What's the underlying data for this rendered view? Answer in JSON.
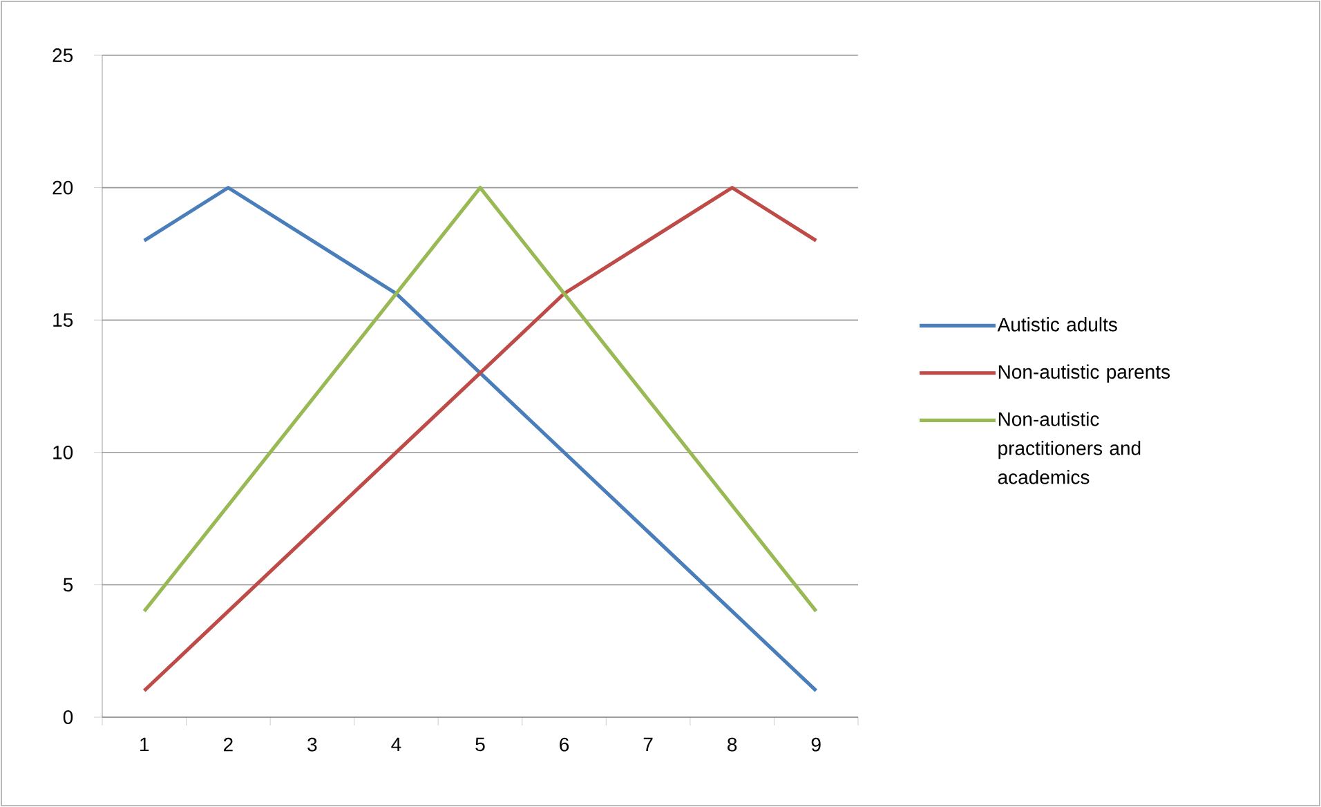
{
  "chart_data": {
    "type": "line",
    "categories": [
      "1",
      "2",
      "3",
      "4",
      "5",
      "6",
      "7",
      "8",
      "9"
    ],
    "series": [
      {
        "name": "Autistic adults",
        "color": "#4a7ebb",
        "values": [
          18,
          20,
          18,
          16,
          13,
          10,
          7,
          4,
          1
        ]
      },
      {
        "name": "Non-autistic parents",
        "color": "#be4b48",
        "values": [
          1,
          4,
          7,
          10,
          13,
          16,
          18,
          20,
          18
        ]
      },
      {
        "name": "Non-autistic practitioners and academics",
        "color": "#98b954",
        "values": [
          4,
          8,
          12,
          16,
          20,
          16,
          12,
          8,
          4
        ]
      }
    ],
    "ylim": [
      0,
      25
    ],
    "yticks": [
      0,
      5,
      10,
      15,
      20,
      25
    ],
    "grid": "y",
    "legend": "right",
    "marker": "none",
    "line_style": "solid"
  }
}
